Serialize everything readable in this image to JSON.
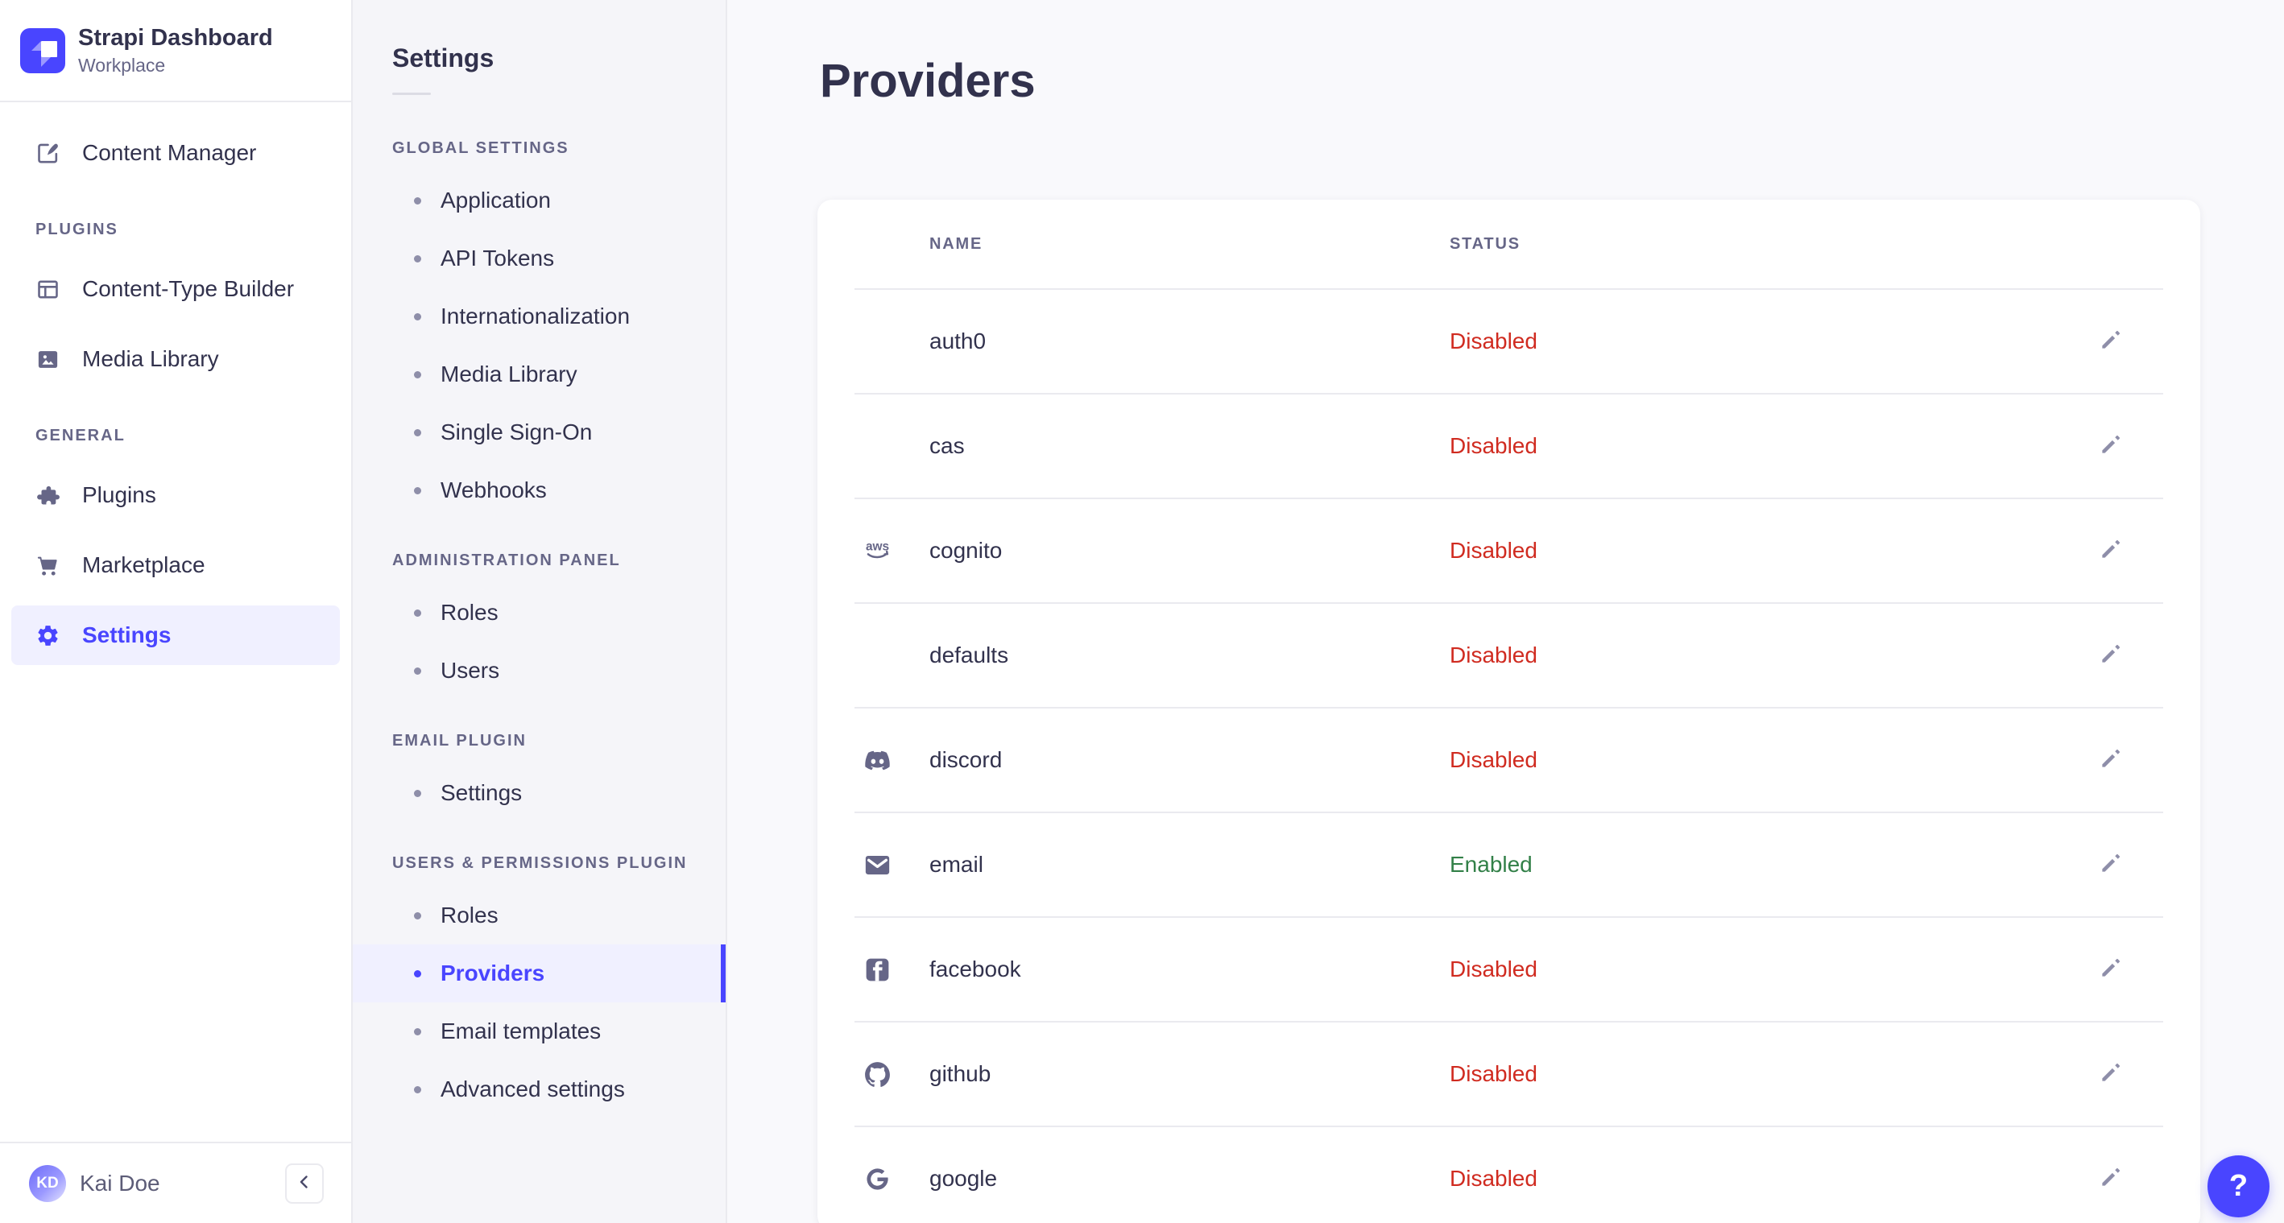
{
  "colors": {
    "primary": "#4945ff",
    "primary_light": "#f0f0ff",
    "danger": "#d02b20",
    "success": "#328048"
  },
  "brand": {
    "title": "Strapi Dashboard",
    "subtitle": "Workplace"
  },
  "sidebar": {
    "groups": [
      {
        "header": null,
        "items": [
          {
            "label": "Content Manager",
            "icon": "content-manager-icon",
            "active": false
          }
        ]
      },
      {
        "header": "PLUGINS",
        "items": [
          {
            "label": "Content-Type Builder",
            "icon": "content-type-builder-icon",
            "active": false
          },
          {
            "label": "Media Library",
            "icon": "media-library-icon",
            "active": false
          }
        ]
      },
      {
        "header": "GENERAL",
        "items": [
          {
            "label": "Plugins",
            "icon": "plugins-icon",
            "active": false
          },
          {
            "label": "Marketplace",
            "icon": "marketplace-icon",
            "active": false
          },
          {
            "label": "Settings",
            "icon": "settings-icon",
            "active": true
          }
        ]
      }
    ],
    "user": {
      "initials": "KD",
      "name": "Kai Doe"
    }
  },
  "subnav": {
    "title": "Settings",
    "sections": [
      {
        "header": "GLOBAL SETTINGS",
        "items": [
          {
            "label": "Application",
            "active": false
          },
          {
            "label": "API Tokens",
            "active": false
          },
          {
            "label": "Internationalization",
            "active": false
          },
          {
            "label": "Media Library",
            "active": false
          },
          {
            "label": "Single Sign-On",
            "active": false
          },
          {
            "label": "Webhooks",
            "active": false
          }
        ]
      },
      {
        "header": "ADMINISTRATION PANEL",
        "items": [
          {
            "label": "Roles",
            "active": false
          },
          {
            "label": "Users",
            "active": false
          }
        ]
      },
      {
        "header": "EMAIL PLUGIN",
        "items": [
          {
            "label": "Settings",
            "active": false
          }
        ]
      },
      {
        "header": "USERS & PERMISSIONS PLUGIN",
        "items": [
          {
            "label": "Roles",
            "active": false
          },
          {
            "label": "Providers",
            "active": true
          },
          {
            "label": "Email templates",
            "active": false
          },
          {
            "label": "Advanced settings",
            "active": false
          }
        ]
      }
    ]
  },
  "main": {
    "title": "Providers",
    "table": {
      "columns": [
        {
          "label": "NAME"
        },
        {
          "label": "STATUS"
        }
      ],
      "rows": [
        {
          "name": "auth0",
          "icon": null,
          "status": "Disabled",
          "status_type": "danger"
        },
        {
          "name": "cas",
          "icon": null,
          "status": "Disabled",
          "status_type": "danger"
        },
        {
          "name": "cognito",
          "icon": "aws-icon",
          "status": "Disabled",
          "status_type": "danger"
        },
        {
          "name": "defaults",
          "icon": null,
          "status": "Disabled",
          "status_type": "danger"
        },
        {
          "name": "discord",
          "icon": "discord-icon",
          "status": "Disabled",
          "status_type": "danger"
        },
        {
          "name": "email",
          "icon": "email-icon",
          "status": "Enabled",
          "status_type": "success"
        },
        {
          "name": "facebook",
          "icon": "facebook-icon",
          "status": "Disabled",
          "status_type": "danger"
        },
        {
          "name": "github",
          "icon": "github-icon",
          "status": "Disabled",
          "status_type": "danger"
        },
        {
          "name": "google",
          "icon": "google-icon",
          "status": "Disabled",
          "status_type": "danger"
        }
      ]
    }
  },
  "help_button": {
    "label": "?"
  }
}
